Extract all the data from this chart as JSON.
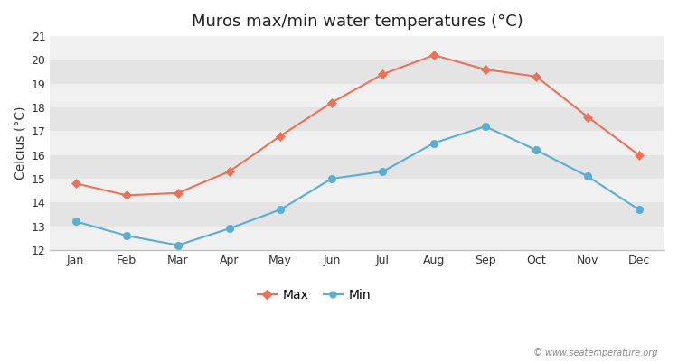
{
  "title": "Muros max/min water temperatures (°C)",
  "ylabel": "Celcius (°C)",
  "months": [
    "Jan",
    "Feb",
    "Mar",
    "Apr",
    "May",
    "Jun",
    "Jul",
    "Aug",
    "Sep",
    "Oct",
    "Nov",
    "Dec"
  ],
  "max_values": [
    14.8,
    14.3,
    14.4,
    15.3,
    16.8,
    18.2,
    19.4,
    20.2,
    19.6,
    19.3,
    17.6,
    16.0
  ],
  "min_values": [
    13.2,
    12.6,
    12.2,
    12.9,
    13.7,
    15.0,
    15.3,
    16.5,
    17.2,
    16.2,
    15.1,
    13.7
  ],
  "max_color": "#e8735a",
  "min_color": "#5aadd4",
  "ylim": [
    12,
    21
  ],
  "yticks": [
    12,
    13,
    14,
    15,
    16,
    17,
    18,
    19,
    20,
    21
  ],
  "fig_background": "#ffffff",
  "plot_background_light": "#f0f0f0",
  "plot_background_dark": "#e4e4e4",
  "legend_labels": [
    "Max",
    "Min"
  ],
  "watermark": "© www.seatemperature.org",
  "title_fontsize": 13,
  "label_fontsize": 10,
  "tick_fontsize": 9,
  "legend_fontsize": 10
}
